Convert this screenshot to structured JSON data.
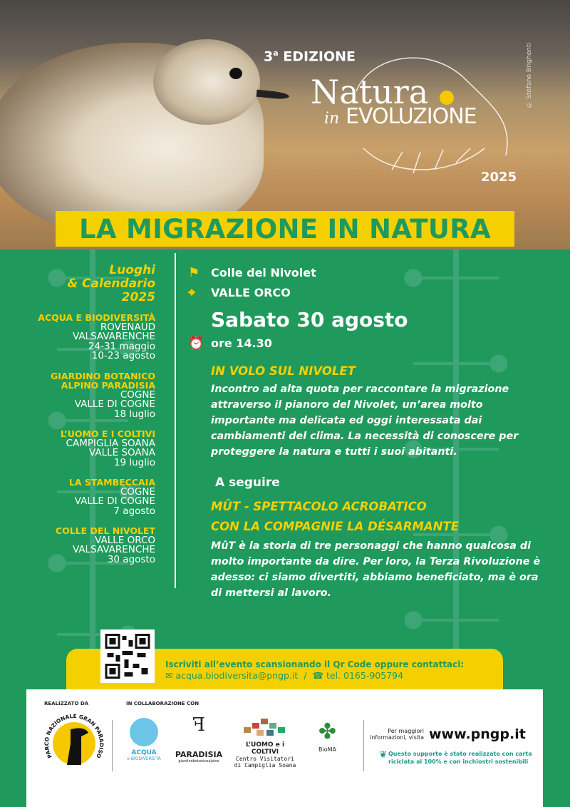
{
  "header": {
    "edition_number": "3",
    "edition_suffix": "a",
    "edition_label": "EDIZIONE",
    "logo_text_1": "Natura",
    "logo_text_2": "in",
    "logo_text_3": "EVOLUZIONE",
    "year": "2025",
    "photo_credit": "© Stefano Brighenti"
  },
  "title": "LA MIGRAZIONE IN NATURA",
  "calendar": {
    "heading": [
      "Luoghi",
      "& Calendario",
      "2025"
    ],
    "locations": [
      {
        "name": [
          "ACQUA E BIODIVERSITÀ"
        ],
        "details": [
          "ROVENAUD",
          "VALSAVARENCHE",
          "24-31 maggio",
          "10-23 agosto"
        ]
      },
      {
        "name": [
          "GIARDINO BOTANICO",
          "ALPINO PARADISIA"
        ],
        "details": [
          "COGNE",
          "VALLE DI COGNE",
          "18 luglio"
        ]
      },
      {
        "name": [
          "L’UOMO E I COLTIVI"
        ],
        "details": [
          "CAMPIGLIA SOANA",
          "VALLE SOANA",
          "19 luglio"
        ]
      },
      {
        "name": [
          "LA STAMBECCAIA"
        ],
        "details": [
          "COGNE",
          "VALLE DI COGNE",
          "7 agosto"
        ]
      },
      {
        "name": [
          "COLLE DEL NIVOLET"
        ],
        "details": [
          "VALLE ORCO",
          "VALSAVARENCHE",
          "30 agosto"
        ]
      }
    ]
  },
  "event": {
    "place": "Colle del Nivolet",
    "valley": "VALLE ORCO",
    "date": "Sabato 30 agosto",
    "time": "ore 14.30",
    "title1": "IN VOLO SUL NIVOLET",
    "desc1": "Incontro ad alta quota per raccontare la migrazione attraverso il pianoro del Nivolet, un’area molto importante ma delicata ed oggi interessata dai cambiamenti del clima. La necessità di conoscere per proteggere la natura e tutti i suoi abitanti.",
    "following": "A seguire",
    "title2a": "MÛT - SPETTACOLO ACROBATICO",
    "title2b": "CON LA COMPAGNIE LA DÉSARMANTE",
    "desc2": "MûT è la storia di tre personaggi che hanno qualcosa di molto importante da dire. Per loro, la Terza Rivoluzione è adesso: ci siamo divertiti, abbiamo beneficiato, ma è ora di mettersi al lavoro."
  },
  "registration": {
    "text": "Iscriviti all’evento scansionando il Qr Code oppure contattaci:",
    "email": "acqua.biodiversita@pngp.it",
    "separator": "/",
    "phone": "tel. 0165-905794"
  },
  "footer": {
    "made_by": "REALIZZATO DA",
    "collab": "IN COLLABORAZIONE CON",
    "park": "PARCO NAZIONALE GRAN PARADISO",
    "partners": [
      "ACQUA",
      "e BIODIVERSITÀ",
      "PARADISIA",
      "giardinobotanicoalpino",
      "L’UOMO e i COLTIVI",
      "Centro Visitatori",
      "di Campiglia Soana",
      "BioMA"
    ],
    "more_info": "Per maggiori informazioni, visita",
    "url": "www.pngp.it",
    "eco": [
      "Questo supporto è stato realizzato con carta",
      "riciclata al 100% e con inchiostri sostenibili"
    ]
  },
  "colors": {
    "green": "#1f9a5c",
    "yellow": "#f5d000"
  }
}
